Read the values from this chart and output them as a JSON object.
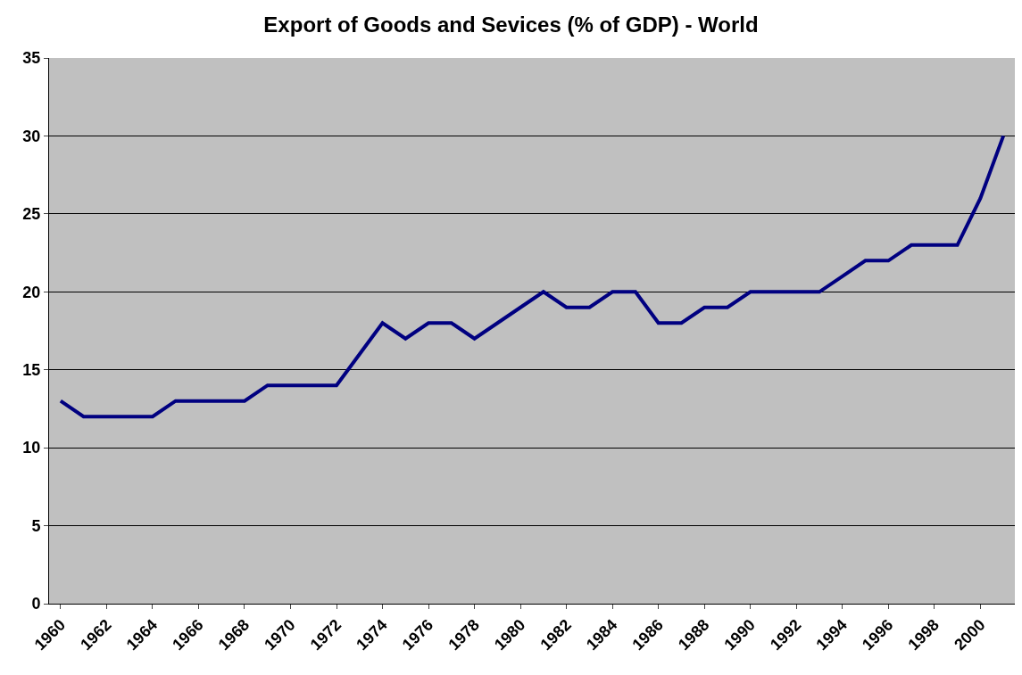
{
  "chart_data": {
    "type": "line",
    "title": "Export of Goods and Sevices (% of GDP) - World",
    "categories": [
      "1960",
      null,
      "1962",
      null,
      "1964",
      null,
      "1966",
      null,
      "1968",
      null,
      "1970",
      null,
      "1972",
      null,
      "1974",
      null,
      "1976",
      null,
      "1978",
      null,
      "1980",
      null,
      "1982",
      null,
      "1984",
      null,
      "1986",
      null,
      "1988",
      null,
      "1990",
      null,
      "1992",
      null,
      "1994",
      null,
      "1996",
      null,
      "1998",
      null,
      "2000",
      null
    ],
    "series": [
      {
        "color": "#000080",
        "values": [
          13,
          12,
          12,
          12,
          12,
          13,
          13,
          13,
          13,
          14,
          14,
          14,
          14,
          16,
          18,
          17,
          18,
          18,
          17,
          18,
          19,
          20,
          19,
          19,
          20,
          20,
          18,
          18,
          19,
          19,
          20,
          20,
          20,
          20,
          21,
          22,
          22,
          23,
          23,
          23,
          26,
          30
        ]
      }
    ],
    "ylim": [
      0,
      35
    ],
    "yticks": [
      0,
      5,
      10,
      15,
      20,
      25,
      30,
      35
    ],
    "grid": "y",
    "marker": "none",
    "line_style": "solid"
  }
}
